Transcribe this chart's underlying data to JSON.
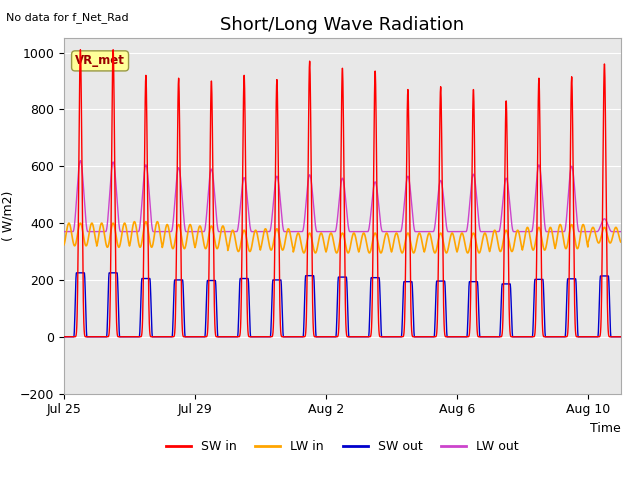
{
  "title": "Short/Long Wave Radiation",
  "no_data_label": "No data for f_Net_Rad",
  "ylabel": "( W/m2)",
  "xlabel": "Time",
  "ylim": [
    -200,
    1050
  ],
  "yticks": [
    -200,
    0,
    200,
    400,
    600,
    800,
    1000
  ],
  "bg_color": "#e8e8e8",
  "fig_color": "#ffffff",
  "legend_label": "VR_met",
  "num_days": 17,
  "sw_in_color": "#ff0000",
  "lw_in_color": "#ffa500",
  "sw_out_color": "#0000cc",
  "lw_out_color": "#cc44cc",
  "legend_labels": [
    "SW in",
    "LW in",
    "SW out",
    "LW out"
  ],
  "x_ticks_days": [
    0,
    4,
    8,
    12,
    16
  ],
  "x_tick_labels": [
    "Jul 25",
    "Jul 29",
    "Aug 2",
    "Aug 6",
    "Aug 10"
  ],
  "grid_color": "#ffffff",
  "title_fontsize": 13,
  "label_fontsize": 9,
  "tick_fontsize": 9,
  "sw_in_peaks": [
    1010,
    1010,
    920,
    910,
    900,
    920,
    905,
    970,
    945,
    935,
    870,
    880,
    870,
    830,
    910,
    915,
    960
  ],
  "lw_out_peaks": [
    620,
    615,
    605,
    595,
    590,
    560,
    565,
    570,
    558,
    545,
    565,
    550,
    572,
    558,
    605,
    600,
    415
  ],
  "lw_in_base": [
    320,
    315,
    315,
    310,
    310,
    300,
    305,
    295,
    295,
    295,
    295,
    295,
    295,
    300,
    305,
    310,
    330
  ],
  "lw_in_bump": [
    80,
    85,
    90,
    85,
    80,
    75,
    75,
    70,
    70,
    70,
    70,
    70,
    70,
    75,
    80,
    85,
    55
  ],
  "sw_out_peaks": [
    225,
    225,
    205,
    200,
    198,
    205,
    200,
    215,
    210,
    208,
    194,
    196,
    194,
    186,
    202,
    204,
    214
  ]
}
